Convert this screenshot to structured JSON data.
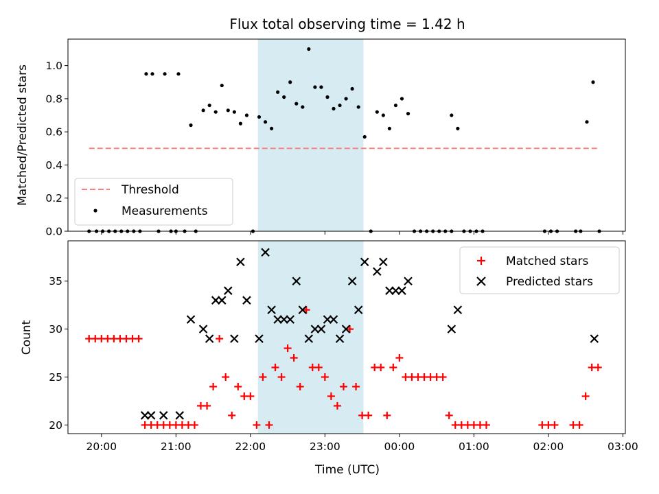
{
  "figure": {
    "title": "Flux total observing time = 1.42 h",
    "xlabel": "Time (UTC)"
  },
  "chart_data": [
    {
      "type": "scatter",
      "ylabel": "Matched/Predicted stars",
      "xlim": [
        "19:33",
        "03:02"
      ],
      "ylim": [
        0.0,
        1.16
      ],
      "yticks": [
        "0.0",
        "0.2",
        "0.4",
        "0.6",
        "0.8",
        "1.0"
      ],
      "highlight_span": [
        "22:06",
        "23:31"
      ],
      "legend_position": "lower-left",
      "threshold": {
        "name": "Threshold",
        "value": 0.5,
        "x_range": [
          "19:50",
          "02:40"
        ],
        "color": "#ff7f7f",
        "style": "dashed"
      },
      "series": [
        {
          "name": "Measurements",
          "marker": "dot",
          "color": "#000000",
          "points": [
            [
              "19:50",
              0.0
            ],
            [
              "19:56",
              0.0
            ],
            [
              "20:01",
              0.0
            ],
            [
              "20:06",
              0.0
            ],
            [
              "20:11",
              0.0
            ],
            [
              "20:16",
              0.0
            ],
            [
              "20:21",
              0.0
            ],
            [
              "20:26",
              0.0
            ],
            [
              "20:31",
              0.0
            ],
            [
              "20:36",
              0.95
            ],
            [
              "20:41",
              0.95
            ],
            [
              "20:51",
              0.95
            ],
            [
              "21:02",
              0.95
            ],
            [
              "20:46",
              0.0
            ],
            [
              "20:56",
              0.0
            ],
            [
              "21:00",
              0.0
            ],
            [
              "21:07",
              0.0
            ],
            [
              "21:16",
              0.0
            ],
            [
              "21:12",
              0.64
            ],
            [
              "21:22",
              0.73
            ],
            [
              "21:27",
              0.76
            ],
            [
              "21:32",
              0.72
            ],
            [
              "21:37",
              0.88
            ],
            [
              "21:42",
              0.73
            ],
            [
              "21:47",
              0.72
            ],
            [
              "21:52",
              0.65
            ],
            [
              "21:57",
              0.7
            ],
            [
              "22:02",
              0.0
            ],
            [
              "22:07",
              0.69
            ],
            [
              "22:12",
              0.66
            ],
            [
              "22:17",
              0.62
            ],
            [
              "22:22",
              0.84
            ],
            [
              "22:27",
              0.81
            ],
            [
              "22:32",
              0.9
            ],
            [
              "22:37",
              0.77
            ],
            [
              "22:42",
              0.75
            ],
            [
              "22:47",
              1.1
            ],
            [
              "22:52",
              0.87
            ],
            [
              "22:57",
              0.87
            ],
            [
              "23:02",
              0.81
            ],
            [
              "23:07",
              0.74
            ],
            [
              "23:12",
              0.76
            ],
            [
              "23:17",
              0.8
            ],
            [
              "23:22",
              0.86
            ],
            [
              "23:27",
              0.75
            ],
            [
              "23:32",
              0.57
            ],
            [
              "23:37",
              0.0
            ],
            [
              "23:42",
              0.72
            ],
            [
              "23:47",
              0.7
            ],
            [
              "23:52",
              0.62
            ],
            [
              "23:57",
              0.76
            ],
            [
              "00:02",
              0.8
            ],
            [
              "00:07",
              0.71
            ],
            [
              "00:12",
              0.0
            ],
            [
              "00:17",
              0.0
            ],
            [
              "00:22",
              0.0
            ],
            [
              "00:27",
              0.0
            ],
            [
              "00:32",
              0.0
            ],
            [
              "00:37",
              0.0
            ],
            [
              "00:42",
              0.0
            ],
            [
              "00:42",
              0.7
            ],
            [
              "00:47",
              0.62
            ],
            [
              "00:52",
              0.0
            ],
            [
              "00:57",
              0.0
            ],
            [
              "01:02",
              0.0
            ],
            [
              "01:07",
              0.0
            ],
            [
              "01:57",
              0.0
            ],
            [
              "02:02",
              0.0
            ],
            [
              "02:07",
              0.0
            ],
            [
              "02:22",
              0.0
            ],
            [
              "02:26",
              0.0
            ],
            [
              "02:31",
              0.66
            ],
            [
              "02:36",
              0.9
            ],
            [
              "02:41",
              0.0
            ]
          ]
        }
      ]
    },
    {
      "type": "scatter",
      "ylabel": "Count",
      "xlim": [
        "19:33",
        "03:02"
      ],
      "ylim": [
        19.1,
        39.2
      ],
      "yticks": [
        "20",
        "25",
        "30",
        "35"
      ],
      "xticks": [
        "20:00",
        "21:00",
        "22:00",
        "23:00",
        "00:00",
        "01:00",
        "02:00",
        "03:00"
      ],
      "highlight_span": [
        "22:06",
        "23:31"
      ],
      "legend_position": "upper-right",
      "series": [
        {
          "name": "Matched stars",
          "marker": "plus",
          "color": "#ff0000",
          "points": [
            [
              "19:50",
              29
            ],
            [
              "19:55",
              29
            ],
            [
              "20:00",
              29
            ],
            [
              "20:05",
              29
            ],
            [
              "20:10",
              29
            ],
            [
              "20:15",
              29
            ],
            [
              "20:20",
              29
            ],
            [
              "20:25",
              29
            ],
            [
              "20:30",
              29
            ],
            [
              "20:35",
              20
            ],
            [
              "20:40",
              20
            ],
            [
              "20:45",
              20
            ],
            [
              "20:50",
              20
            ],
            [
              "20:55",
              20
            ],
            [
              "21:00",
              20
            ],
            [
              "21:05",
              20
            ],
            [
              "21:10",
              20
            ],
            [
              "21:15",
              20
            ],
            [
              "21:20",
              22
            ],
            [
              "21:25",
              22
            ],
            [
              "21:30",
              24
            ],
            [
              "21:35",
              29
            ],
            [
              "21:40",
              25
            ],
            [
              "21:45",
              21
            ],
            [
              "21:50",
              24
            ],
            [
              "21:55",
              23
            ],
            [
              "22:00",
              23
            ],
            [
              "22:05",
              20
            ],
            [
              "22:10",
              25
            ],
            [
              "22:15",
              20
            ],
            [
              "22:20",
              26
            ],
            [
              "22:25",
              25
            ],
            [
              "22:30",
              28
            ],
            [
              "22:35",
              27
            ],
            [
              "22:40",
              24
            ],
            [
              "22:45",
              32
            ],
            [
              "22:50",
              26
            ],
            [
              "22:55",
              26
            ],
            [
              "23:00",
              25
            ],
            [
              "23:05",
              23
            ],
            [
              "23:10",
              22
            ],
            [
              "23:15",
              24
            ],
            [
              "23:20",
              30
            ],
            [
              "23:25",
              24
            ],
            [
              "23:30",
              21
            ],
            [
              "23:35",
              21
            ],
            [
              "23:40",
              26
            ],
            [
              "23:45",
              26
            ],
            [
              "23:50",
              21
            ],
            [
              "23:55",
              26
            ],
            [
              "00:00",
              27
            ],
            [
              "00:05",
              25
            ],
            [
              "00:10",
              25
            ],
            [
              "00:15",
              25
            ],
            [
              "00:20",
              25
            ],
            [
              "00:25",
              25
            ],
            [
              "00:30",
              25
            ],
            [
              "00:35",
              25
            ],
            [
              "00:40",
              21
            ],
            [
              "00:45",
              20
            ],
            [
              "00:50",
              20
            ],
            [
              "00:55",
              20
            ],
            [
              "01:00",
              20
            ],
            [
              "01:05",
              20
            ],
            [
              "01:10",
              20
            ],
            [
              "01:55",
              20
            ],
            [
              "02:00",
              20
            ],
            [
              "02:05",
              20
            ],
            [
              "02:20",
              20
            ],
            [
              "02:25",
              20
            ],
            [
              "02:30",
              23
            ],
            [
              "02:35",
              26
            ],
            [
              "02:40",
              26
            ]
          ]
        },
        {
          "name": "Predicted stars",
          "marker": "x",
          "color": "#000000",
          "points": [
            [
              "20:35",
              21
            ],
            [
              "20:40",
              21
            ],
            [
              "20:50",
              21
            ],
            [
              "21:03",
              21
            ],
            [
              "21:12",
              31
            ],
            [
              "21:22",
              30
            ],
            [
              "21:27",
              29
            ],
            [
              "21:32",
              33
            ],
            [
              "21:37",
              33
            ],
            [
              "21:42",
              34
            ],
            [
              "21:47",
              29
            ],
            [
              "21:52",
              37
            ],
            [
              "21:57",
              33
            ],
            [
              "22:07",
              29
            ],
            [
              "22:12",
              38
            ],
            [
              "22:17",
              32
            ],
            [
              "22:22",
              31
            ],
            [
              "22:27",
              31
            ],
            [
              "22:32",
              31
            ],
            [
              "22:37",
              35
            ],
            [
              "22:42",
              32
            ],
            [
              "22:47",
              29
            ],
            [
              "22:52",
              30
            ],
            [
              "22:57",
              30
            ],
            [
              "23:02",
              31
            ],
            [
              "23:07",
              31
            ],
            [
              "23:12",
              29
            ],
            [
              "23:17",
              30
            ],
            [
              "23:22",
              35
            ],
            [
              "23:27",
              32
            ],
            [
              "23:32",
              37
            ],
            [
              "23:42",
              36
            ],
            [
              "23:47",
              37
            ],
            [
              "23:52",
              34
            ],
            [
              "23:57",
              34
            ],
            [
              "00:02",
              34
            ],
            [
              "00:07",
              35
            ],
            [
              "00:42",
              30
            ],
            [
              "00:47",
              32
            ],
            [
              "02:37",
              29
            ]
          ]
        }
      ]
    }
  ]
}
